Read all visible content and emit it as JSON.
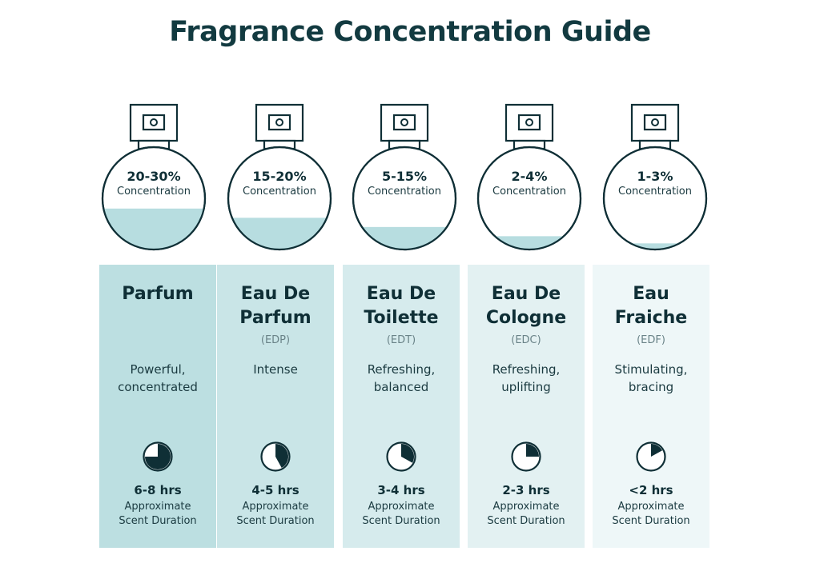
{
  "title": "Fragrance Concentration Guide",
  "colors": {
    "ink": "#0f2f36",
    "liquid": "#b7dde0",
    "column_bg": [
      "#bcdfe1",
      "#c9e5e7",
      "#d6ebed",
      "#e3f1f2",
      "#eef7f8"
    ]
  },
  "items": [
    {
      "pct": "20-30%",
      "concentration_label": "Concentration",
      "fill_fraction": 0.4,
      "name_line1": "Parfum",
      "name_line2": "",
      "abbr": "",
      "desc_line1": "Powerful,",
      "desc_line2": "concentrated",
      "duration_fraction": 0.75,
      "hours": "6-8 hrs",
      "approx": "Approximate",
      "scent": "Scent Duration",
      "icon": "clock-icon"
    },
    {
      "pct": "15-20%",
      "concentration_label": "Concentration",
      "fill_fraction": 0.31,
      "name_line1": "Eau De",
      "name_line2": "Parfum",
      "abbr": "(EDP)",
      "desc_line1": "Intense",
      "desc_line2": "",
      "duration_fraction": 0.42,
      "hours": "4-5 hrs",
      "approx": "Approximate",
      "scent": "Scent Duration",
      "icon": "clock-icon"
    },
    {
      "pct": "5-15%",
      "concentration_label": "Concentration",
      "fill_fraction": 0.22,
      "name_line1": "Eau De",
      "name_line2": "Toilette",
      "abbr": "(EDT)",
      "desc_line1": "Refreshing,",
      "desc_line2": "balanced",
      "duration_fraction": 0.33,
      "hours": "3-4 hrs",
      "approx": "Approximate",
      "scent": "Scent Duration",
      "icon": "clock-icon"
    },
    {
      "pct": "2-4%",
      "concentration_label": "Concentration",
      "fill_fraction": 0.13,
      "name_line1": "Eau De",
      "name_line2": "Cologne",
      "abbr": "(EDC)",
      "desc_line1": "Refreshing,",
      "desc_line2": "uplifting",
      "duration_fraction": 0.25,
      "hours": "2-3 hrs",
      "approx": "Approximate",
      "scent": "Scent Duration",
      "icon": "clock-icon"
    },
    {
      "pct": "1-3%",
      "concentration_label": "Concentration",
      "fill_fraction": 0.06,
      "name_line1": "Eau",
      "name_line2": "Fraiche",
      "abbr": "(EDF)",
      "desc_line1": "Stimulating,",
      "desc_line2": "bracing",
      "duration_fraction": 0.17,
      "hours": "<2 hrs",
      "approx": "Approximate",
      "scent": "Scent Duration",
      "icon": "clock-icon"
    }
  ]
}
